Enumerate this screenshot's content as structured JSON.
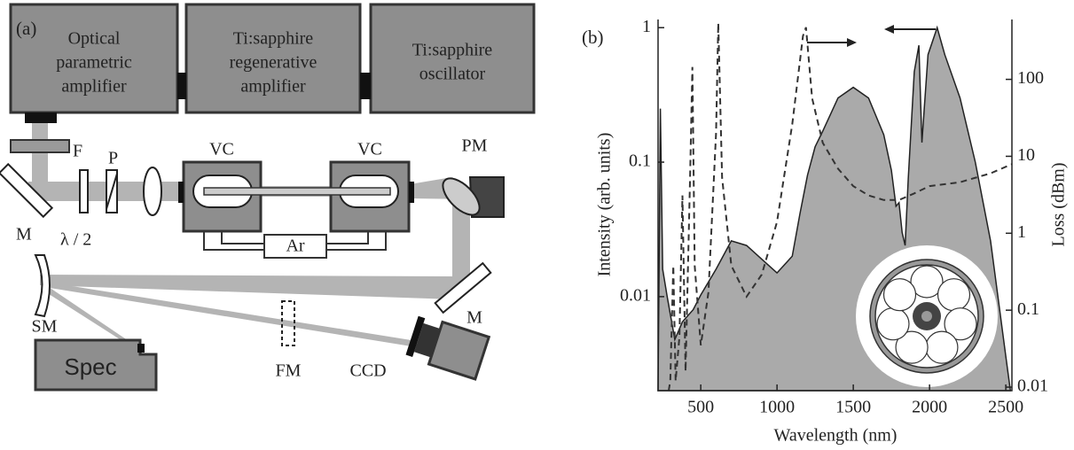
{
  "panel_a": {
    "label": "(a)",
    "boxes": [
      {
        "lines": [
          "Optical",
          "parametric",
          "amplifier"
        ]
      },
      {
        "lines": [
          "Ti:sapphire",
          "regenerative",
          "amplifier"
        ]
      },
      {
        "lines": [
          "Ti:sapphire",
          "oscillator"
        ]
      }
    ],
    "components": {
      "filter": "F",
      "polarizer": "P",
      "mirror_1": "M",
      "half_wave": "λ / 2",
      "cell_1": "VC",
      "cell_2": "VC",
      "gas": "Ar",
      "parabolic_mirror": "PM",
      "mirror_2": "M",
      "spherical_mirror": "SM",
      "spectrometer": "Spec",
      "flip_mirror": "FM",
      "camera": "CCD"
    }
  },
  "chart_data": {
    "type": "line",
    "panel_label": "(b)",
    "x_label": "Wavelength (nm)",
    "y_label": "Intensity (arb. units)",
    "y2_label": "Loss (dBm)",
    "xlim": [
      220,
      2540
    ],
    "xticks": [
      500,
      1000,
      1500,
      2000,
      2500
    ],
    "ylim": [
      0.002,
      1.15
    ],
    "yticks": [
      0.01,
      0.1,
      1
    ],
    "log_y": true,
    "y2lim": [
      0.009,
      600
    ],
    "y2ticks": [
      0.01,
      0.1,
      1,
      10,
      100
    ],
    "log_y2": true,
    "series": [
      {
        "color": "#aaaaaa",
        "fill": true,
        "style": "solid",
        "x": [
          220,
          235,
          250,
          280,
          330,
          380,
          450,
          500,
          600,
          700,
          800,
          900,
          1000,
          1100,
          1150,
          1200,
          1250,
          1300,
          1400,
          1500,
          1600,
          1700,
          1750,
          1780,
          1800,
          1820,
          1840,
          1860,
          1900,
          1930,
          1950,
          1990,
          2050,
          2100,
          2200,
          2300,
          2400,
          2500,
          2530
        ],
        "values": [
          0.002,
          0.25,
          0.016,
          0.01,
          0.0048,
          0.0065,
          0.008,
          0.0103,
          0.016,
          0.026,
          0.024,
          0.019,
          0.015,
          0.02,
          0.041,
          0.08,
          0.13,
          0.17,
          0.3,
          0.36,
          0.3,
          0.16,
          0.087,
          0.047,
          0.05,
          0.03,
          0.024,
          0.075,
          0.47,
          0.74,
          0.14,
          0.63,
          1.0,
          0.63,
          0.3,
          0.1,
          0.026,
          0.0036,
          0.002
        ]
      },
      {
        "color": "#333333",
        "fill": false,
        "style": "dashed",
        "axis": "y2",
        "x": [
          290,
          300,
          320,
          335,
          360,
          380,
          400,
          430,
          445,
          460,
          500,
          550,
          600,
          615,
          640,
          700,
          800,
          900,
          1000,
          1100,
          1170,
          1190,
          1230,
          1300,
          1400,
          1500,
          1600,
          1700,
          1800,
          1900,
          2000,
          2200,
          2400,
          2540
        ],
        "values": [
          0.009,
          0.012,
          0.38,
          0.012,
          0.045,
          3.1,
          0.016,
          5.3,
          145,
          0.38,
          0.035,
          0.17,
          20,
          540,
          5.3,
          0.38,
          0.15,
          0.29,
          1.4,
          26,
          366,
          475,
          57,
          15,
          6.9,
          4.1,
          3.1,
          2.7,
          2.7,
          3.3,
          4.1,
          4.6,
          6.0,
          7.9
        ]
      }
    ]
  }
}
